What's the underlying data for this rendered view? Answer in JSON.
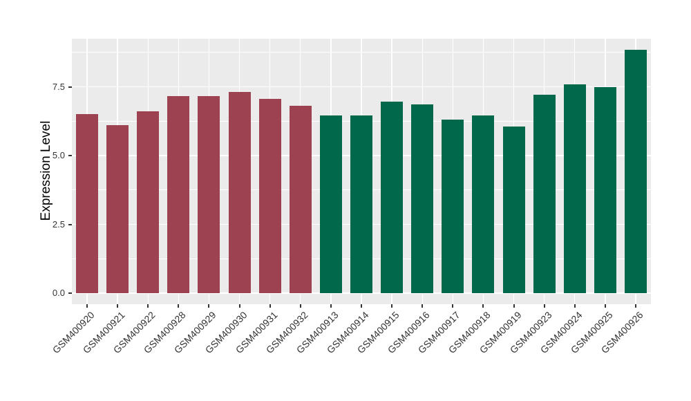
{
  "chart_data": {
    "type": "bar",
    "title": "",
    "xlabel": "",
    "ylabel": "Expression Level",
    "categories": [
      "GSM400920",
      "GSM400921",
      "GSM400922",
      "GSM400928",
      "GSM400929",
      "GSM400930",
      "GSM400931",
      "GSM400932",
      "GSM400913",
      "GSM400914",
      "GSM400915",
      "GSM400916",
      "GSM400917",
      "GSM400918",
      "GSM400919",
      "GSM400923",
      "GSM400924",
      "GSM400925",
      "GSM400926"
    ],
    "values": [
      6.5,
      6.1,
      6.6,
      7.15,
      7.15,
      7.3,
      7.05,
      6.8,
      6.45,
      6.45,
      6.95,
      6.85,
      6.3,
      6.45,
      6.05,
      7.2,
      7.6,
      7.5,
      8.85
    ],
    "bar_colors": [
      "#9C4251",
      "#9C4251",
      "#9C4251",
      "#9C4251",
      "#9C4251",
      "#9C4251",
      "#9C4251",
      "#9C4251",
      "#01684B",
      "#01684B",
      "#01684B",
      "#01684B",
      "#01684B",
      "#01684B",
      "#01684B",
      "#01684B",
      "#01684B",
      "#01684B",
      "#01684B"
    ],
    "yticks": [
      0,
      2.5,
      5,
      7.5
    ],
    "ytick_labels": [
      "0.0",
      "2.5",
      "5.0",
      "7.5"
    ],
    "minor_ticks": [
      1.25,
      3.75,
      6.25,
      8.75
    ],
    "ylim": [
      0,
      9.25
    ],
    "grid": true,
    "legend": false,
    "panel_bg": "#EBEBEB",
    "grid_color": "#FFFFFF",
    "axis_text_color": "#333333",
    "tick_mark_color": "#333333"
  }
}
